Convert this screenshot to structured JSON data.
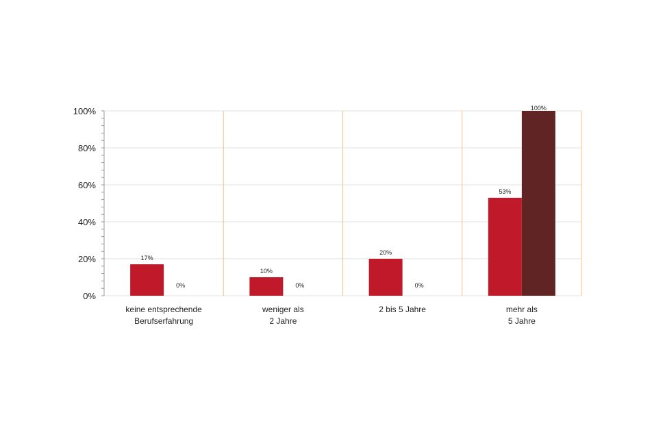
{
  "chart_data": {
    "type": "bar",
    "categories": [
      [
        "keine entsprechende",
        "Berufserfahrung"
      ],
      [
        "weniger als",
        "2 Jahre"
      ],
      [
        "2 bis 5 Jahre"
      ],
      [
        "mehr als",
        "5 Jahre"
      ]
    ],
    "series": [
      {
        "values": [
          17,
          10,
          20,
          53
        ],
        "labels": [
          "17%",
          "10%",
          "20%",
          "53%"
        ],
        "color": "#c0192a"
      },
      {
        "values": [
          0,
          0,
          0,
          100
        ],
        "labels": [
          "0%",
          "0%",
          "0%",
          "100%"
        ],
        "color": "#612424"
      }
    ],
    "ylim": [
      0,
      100
    ],
    "yticks": [
      0,
      20,
      40,
      60,
      80,
      100
    ],
    "ytick_labels": [
      "0%",
      "20%",
      "40%",
      "60%",
      "80%",
      "100%"
    ],
    "grid": true,
    "gridline_color": "#e0e0e0",
    "category_separator_color": "#f8c08a"
  }
}
